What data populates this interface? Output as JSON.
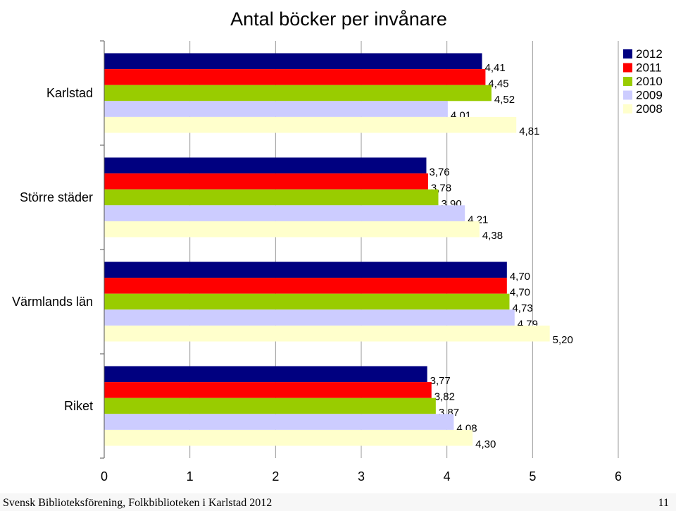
{
  "chart_data": {
    "type": "bar",
    "orientation": "horizontal",
    "title": "Antal böcker per invånare",
    "categories": [
      "Karlstad",
      "Större städer",
      "Värmlands län",
      "Riket"
    ],
    "series": [
      {
        "name": "2012",
        "color": "#000080",
        "values": [
          4.41,
          3.76,
          4.7,
          3.77
        ],
        "labels": [
          "4,41",
          "3,76",
          "4,70",
          "3,77"
        ]
      },
      {
        "name": "2011",
        "color": "#ff0000",
        "values": [
          4.45,
          3.78,
          4.7,
          3.82
        ],
        "labels": [
          "4,45",
          "3,78",
          "4,70",
          "3,82"
        ]
      },
      {
        "name": "2010",
        "color": "#99cc00",
        "values": [
          4.52,
          3.9,
          4.73,
          3.87
        ],
        "labels": [
          "4,52",
          "3,90",
          "4,73",
          "3,87"
        ]
      },
      {
        "name": "2009",
        "color": "#ccccff",
        "values": [
          4.01,
          4.21,
          4.79,
          4.08
        ],
        "labels": [
          "4,01",
          "4,21",
          "4,79",
          "4,08"
        ]
      },
      {
        "name": "2008",
        "color": "#ffffcc",
        "values": [
          4.81,
          4.38,
          5.2,
          4.3
        ],
        "labels": [
          "4,81",
          "4,38",
          "5,20",
          "4,30"
        ]
      }
    ],
    "xlim": [
      0,
      6
    ],
    "xticks": [
      "0",
      "1",
      "2",
      "3",
      "4",
      "5",
      "6"
    ],
    "grid": true,
    "legend": "top-right"
  },
  "footer": {
    "text": "Svensk Biblioteksförening, Folkbiblioteken i Karlstad 2012",
    "page": "11"
  }
}
